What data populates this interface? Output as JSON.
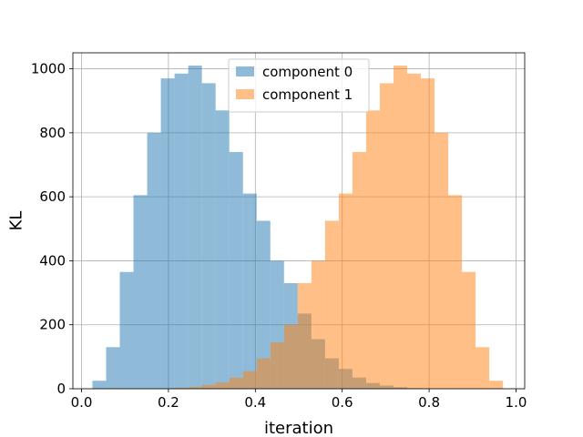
{
  "chart_data": {
    "type": "bar",
    "title": "",
    "xlabel": "iteration",
    "ylabel": "KL",
    "xlim": [
      -0.02,
      1.02
    ],
    "ylim": [
      0,
      1050
    ],
    "x_ticks": [
      0.0,
      0.2,
      0.4,
      0.6,
      0.8,
      1.0
    ],
    "x_tick_labels": [
      "0.0",
      "0.2",
      "0.4",
      "0.6",
      "0.8",
      "1.0"
    ],
    "y_ticks": [
      0,
      200,
      400,
      600,
      800,
      1000
    ],
    "y_tick_labels": [
      "0",
      "200",
      "400",
      "600",
      "800",
      "1000"
    ],
    "grid": true,
    "legend_position": "top-center",
    "bin_edges": [
      0.025,
      0.0565,
      0.088,
      0.1195,
      0.151,
      0.1825,
      0.214,
      0.2455,
      0.277,
      0.3085,
      0.34,
      0.3715,
      0.403,
      0.4345,
      0.466,
      0.4975,
      0.529,
      0.5605,
      0.592,
      0.6235,
      0.655,
      0.6865,
      0.718,
      0.7495,
      0.781,
      0.8125,
      0.844,
      0.8755,
      0.907,
      0.9385,
      0.97
    ],
    "series": [
      {
        "name": "component 0",
        "color": "#1f77b4",
        "values": [
          25,
          130,
          365,
          605,
          800,
          970,
          985,
          1010,
          955,
          870,
          740,
          610,
          525,
          400,
          330,
          235,
          155,
          95,
          62,
          35,
          18,
          10,
          5,
          2,
          1,
          0,
          0,
          0,
          0,
          0
        ]
      },
      {
        "name": "component 1",
        "color": "#ff7f0e",
        "values": [
          0,
          0,
          0,
          0,
          0,
          1,
          3,
          6,
          12,
          20,
          35,
          55,
          95,
          145,
          200,
          330,
          400,
          525,
          610,
          740,
          870,
          955,
          1010,
          985,
          970,
          800,
          605,
          365,
          130,
          25
        ]
      }
    ]
  }
}
